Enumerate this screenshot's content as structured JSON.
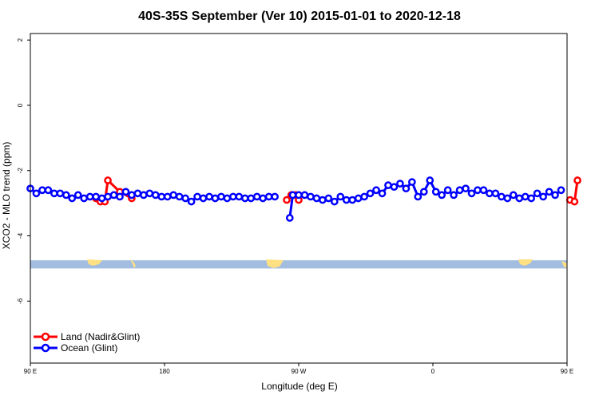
{
  "chart_data": {
    "type": "line",
    "title": "40S-35S September (Ver 10)   2015-01-01 to 2020-12-18",
    "xlabel": "Longitude (deg E)",
    "ylabel": "XCO2 - MLO trend (ppm)",
    "xlim": [
      90,
      450
    ],
    "ylim": [
      -7.9,
      2.2
    ],
    "x_ticks": [
      {
        "value": 90,
        "label": "90 E"
      },
      {
        "value": 180,
        "label": "180"
      },
      {
        "value": 270,
        "label": "90 W"
      },
      {
        "value": 360,
        "label": "0"
      },
      {
        "value": 450,
        "label": "90 E"
      },
      {
        "value": 540,
        "label": "180"
      }
    ],
    "y_ticks": [
      {
        "value": 2,
        "label": "2"
      },
      {
        "value": 0,
        "label": "0"
      },
      {
        "value": -2,
        "label": "-2"
      },
      {
        "value": -4,
        "label": "-4"
      },
      {
        "value": -6,
        "label": "-6"
      }
    ],
    "map_strip": {
      "y_range": [
        -5.0,
        -4.75
      ],
      "ocean_color": "#a3bde0",
      "land_color": "#ffe082"
    },
    "legend_position": "bottom-left",
    "series": [
      {
        "name": "Land (Nadir&Glint)",
        "color": "#ff0000",
        "segments": [
          [
            [
              134,
              -2.85
            ],
            [
              137,
              -2.95
            ],
            [
              140,
              -2.95
            ],
            [
              142,
              -2.3
            ],
            [
              150,
              -2.65
            ],
            [
              158,
              -2.85
            ]
          ],
          [
            [
              262,
              -2.9
            ],
            [
              265,
              -2.75
            ],
            [
              268,
              -2.75
            ],
            [
              270,
              -2.9
            ]
          ],
          [
            [
              452,
              -2.9
            ],
            [
              455,
              -2.95
            ],
            [
              457,
              -2.3
            ]
          ],
          [
            [
              487,
              -2.9
            ]
          ]
        ]
      },
      {
        "name": "Ocean (Glint)",
        "color": "#0000ff",
        "segments": [
          [
            [
              90,
              -2.55
            ],
            [
              94,
              -2.7
            ],
            [
              98,
              -2.6
            ],
            [
              102,
              -2.6
            ],
            [
              106,
              -2.7
            ],
            [
              110,
              -2.7
            ],
            [
              114,
              -2.75
            ],
            [
              118,
              -2.85
            ],
            [
              122,
              -2.75
            ],
            [
              126,
              -2.85
            ],
            [
              130,
              -2.8
            ],
            [
              134,
              -2.8
            ],
            [
              138,
              -2.85
            ],
            [
              142,
              -2.8
            ],
            [
              146,
              -2.75
            ],
            [
              150,
              -2.8
            ],
            [
              154,
              -2.65
            ],
            [
              158,
              -2.75
            ],
            [
              162,
              -2.7
            ],
            [
              166,
              -2.75
            ],
            [
              170,
              -2.7
            ],
            [
              174,
              -2.75
            ],
            [
              178,
              -2.8
            ],
            [
              182,
              -2.8
            ],
            [
              186,
              -2.75
            ],
            [
              190,
              -2.8
            ],
            [
              194,
              -2.85
            ],
            [
              198,
              -2.95
            ],
            [
              202,
              -2.8
            ],
            [
              206,
              -2.85
            ],
            [
              210,
              -2.8
            ],
            [
              214,
              -2.85
            ],
            [
              218,
              -2.8
            ],
            [
              222,
              -2.85
            ],
            [
              226,
              -2.8
            ],
            [
              230,
              -2.8
            ],
            [
              234,
              -2.85
            ],
            [
              238,
              -2.85
            ],
            [
              242,
              -2.8
            ],
            [
              246,
              -2.85
            ],
            [
              250,
              -2.8
            ],
            [
              254,
              -2.8
            ]
          ],
          [
            [
              264,
              -3.45
            ],
            [
              266,
              -2.75
            ],
            [
              270,
              -2.75
            ],
            [
              274,
              -2.75
            ],
            [
              278,
              -2.8
            ],
            [
              282,
              -2.85
            ],
            [
              286,
              -2.9
            ],
            [
              290,
              -2.85
            ],
            [
              294,
              -2.95
            ],
            [
              298,
              -2.8
            ],
            [
              302,
              -2.9
            ],
            [
              306,
              -2.9
            ],
            [
              310,
              -2.85
            ],
            [
              314,
              -2.8
            ],
            [
              318,
              -2.7
            ],
            [
              322,
              -2.6
            ],
            [
              326,
              -2.7
            ],
            [
              330,
              -2.45
            ],
            [
              334,
              -2.5
            ],
            [
              338,
              -2.4
            ],
            [
              342,
              -2.55
            ],
            [
              346,
              -2.35
            ],
            [
              350,
              -2.8
            ],
            [
              354,
              -2.65
            ],
            [
              358,
              -2.3
            ],
            [
              362,
              -2.65
            ],
            [
              366,
              -2.75
            ],
            [
              370,
              -2.6
            ],
            [
              374,
              -2.75
            ],
            [
              378,
              -2.6
            ],
            [
              382,
              -2.55
            ],
            [
              386,
              -2.7
            ],
            [
              390,
              -2.6
            ],
            [
              394,
              -2.6
            ],
            [
              398,
              -2.7
            ],
            [
              402,
              -2.7
            ],
            [
              406,
              -2.8
            ],
            [
              410,
              -2.85
            ],
            [
              414,
              -2.75
            ],
            [
              418,
              -2.85
            ],
            [
              422,
              -2.8
            ],
            [
              426,
              -2.85
            ],
            [
              430,
              -2.7
            ],
            [
              434,
              -2.8
            ],
            [
              438,
              -2.65
            ],
            [
              442,
              -2.75
            ],
            [
              446,
              -2.6
            ]
          ]
        ]
      }
    ]
  }
}
